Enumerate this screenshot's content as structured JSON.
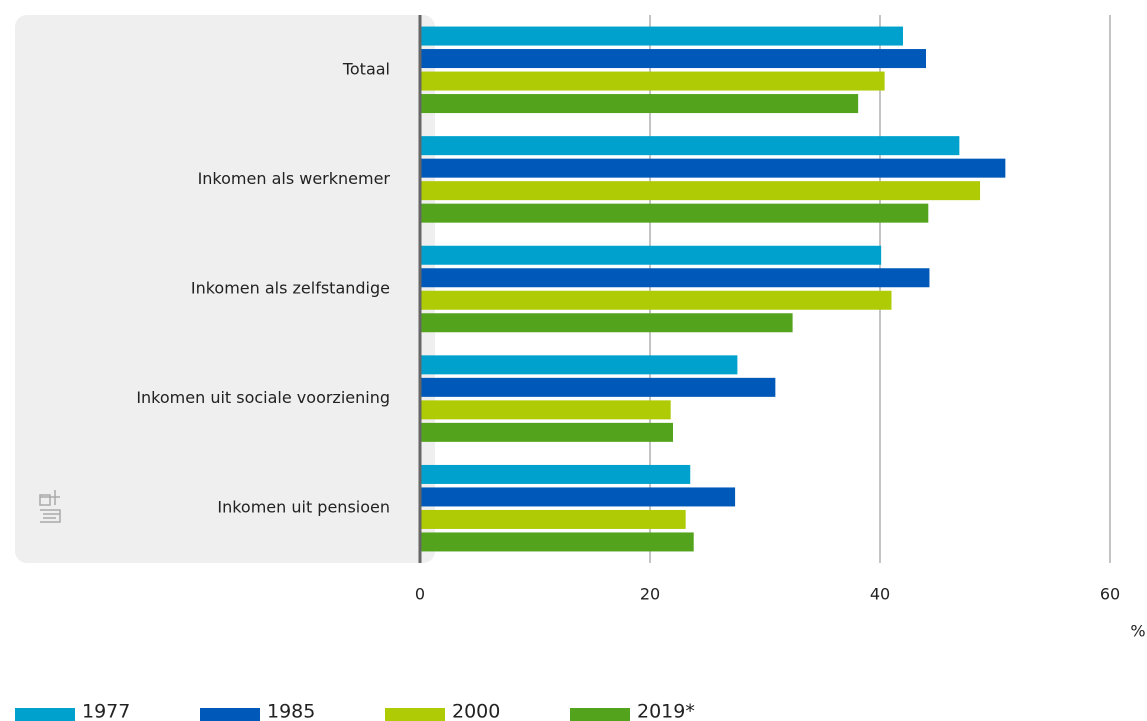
{
  "chart_data": {
    "type": "bar",
    "orientation": "horizontal",
    "categories": [
      "Totaal",
      "Inkomen als werknemer",
      "Inkomen als zelfstandige",
      "Inkomen uit sociale voorziening",
      "Inkomen uit pensioen"
    ],
    "series": [
      {
        "name": "1977",
        "color": "#00a1cd",
        "values": [
          42.0,
          46.9,
          40.1,
          27.6,
          23.5
        ]
      },
      {
        "name": "1985",
        "color": "#0058b8",
        "values": [
          44.0,
          50.9,
          44.3,
          30.9,
          27.4
        ]
      },
      {
        "name": "2000",
        "color": "#afcb05",
        "values": [
          40.4,
          48.7,
          41.0,
          21.8,
          23.1
        ]
      },
      {
        "name": "2019*",
        "color": "#53a31d",
        "values": [
          38.1,
          44.2,
          32.4,
          22.0,
          23.8
        ]
      }
    ],
    "xlim": [
      0,
      60
    ],
    "xticks": [
      0,
      20,
      40,
      60
    ],
    "xlabel": "%",
    "grid": true
  }
}
